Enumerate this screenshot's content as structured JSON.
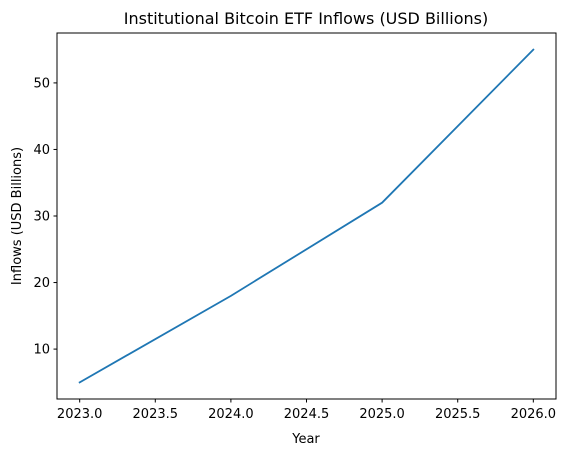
{
  "chart_data": {
    "type": "line",
    "title": "Institutional Bitcoin ETF Inflows (USD Billions)",
    "xlabel": "Year",
    "ylabel": "Inflows (USD Billions)",
    "x": [
      2023,
      2024,
      2025,
      2026
    ],
    "series": [
      {
        "values": [
          5,
          18,
          32,
          55
        ],
        "color": "#1f77b4"
      }
    ],
    "xlim": [
      2022.85,
      2026.15
    ],
    "ylim": [
      2.5,
      57.5
    ],
    "xticks": [
      "2023.0",
      "2023.5",
      "2024.0",
      "2024.5",
      "2025.0",
      "2025.5",
      "2026.0"
    ],
    "yticks": [
      "10",
      "20",
      "30",
      "40",
      "50"
    ],
    "grid": false,
    "legend": "none"
  }
}
